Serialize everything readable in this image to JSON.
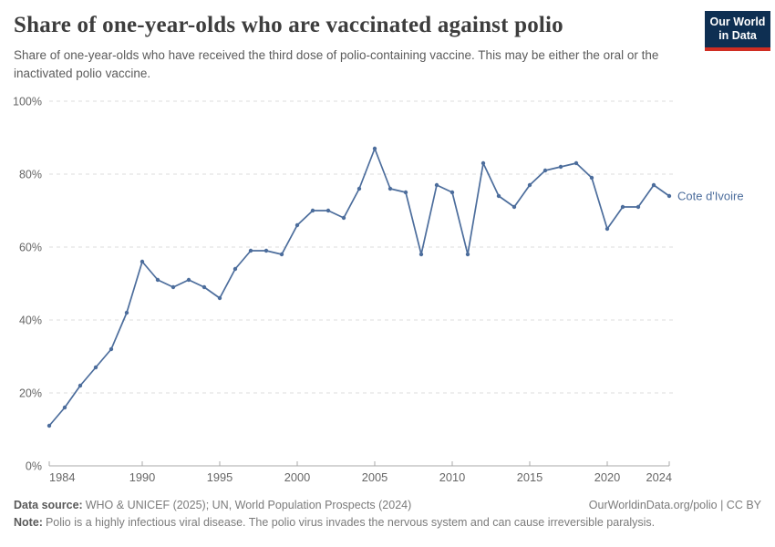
{
  "header": {
    "title": "Share of one-year-olds who are vaccinated against polio",
    "subtitle": "Share of one-year-olds who have received the third dose of polio-containing vaccine. This may be either the oral or the inactivated polio vaccine.",
    "logo": {
      "line1": "Our World",
      "line2": "in Data",
      "bg_color": "#0e2f52",
      "accent_color": "#cf2d22"
    }
  },
  "chart_data": {
    "type": "line",
    "title": "Share of one-year-olds who are vaccinated against polio",
    "series_label": "Cote d'Ivoire",
    "x": [
      1984,
      1985,
      1986,
      1987,
      1988,
      1989,
      1990,
      1991,
      1992,
      1993,
      1994,
      1995,
      1996,
      1997,
      1998,
      1999,
      2000,
      2001,
      2002,
      2003,
      2004,
      2005,
      2006,
      2007,
      2008,
      2009,
      2010,
      2011,
      2012,
      2013,
      2014,
      2015,
      2016,
      2017,
      2018,
      2019,
      2020,
      2021,
      2022,
      2023,
      2024
    ],
    "values": [
      11,
      16,
      22,
      27,
      32,
      42,
      56,
      51,
      49,
      51,
      49,
      46,
      54,
      59,
      59,
      58,
      66,
      70,
      70,
      68,
      76,
      87,
      76,
      75,
      58,
      77,
      75,
      58,
      83,
      74,
      71,
      77,
      81,
      82,
      83,
      79,
      65,
      71,
      71,
      77,
      74
    ],
    "xlim": [
      1984,
      2024
    ],
    "ylim": [
      0,
      100
    ],
    "x_ticks": [
      1984,
      1990,
      1995,
      2000,
      2005,
      2010,
      2015,
      2020,
      2024
    ],
    "y_ticks": [
      0,
      20,
      40,
      60,
      80,
      100
    ],
    "y_tick_suffix": "%",
    "grid": true,
    "legend_position": "end-of-line-label",
    "line_color": "#4c6d9c",
    "grid_color": "#dcdcdc",
    "axis_color": "#a8a8a8",
    "tick_text_color": "#666666"
  },
  "footer": {
    "source_label": "Data source:",
    "source_text": "WHO & UNICEF (2025); UN, World Population Prospects (2024)",
    "link_text": "OurWorldinData.org/polio | CC BY",
    "note_label": "Note:",
    "note_text": "Polio is a highly infectious viral disease. The polio virus invades the nervous system and can cause irreversible paralysis."
  }
}
